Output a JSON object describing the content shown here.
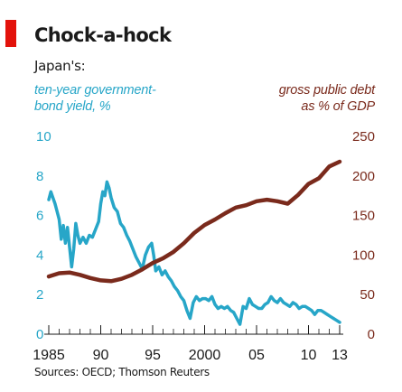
{
  "header": {
    "title": "Chock-a-hock",
    "subtitle": "Japan's:",
    "accent_color": "#e3120b"
  },
  "footer": {
    "source": "Sources: OECD; Thomson Reuters"
  },
  "chart_data": {
    "type": "line",
    "title": "Chock-a-hock",
    "subtitle": "Japan's:",
    "grid": false,
    "x_axis": {
      "range": [
        1985,
        2013
      ],
      "tick_labels": [
        "1985",
        "90",
        "95",
        "2000",
        "05",
        "10",
        "13"
      ],
      "tick_values": [
        1985,
        1990,
        1995,
        2000,
        2005,
        2010,
        2013
      ]
    },
    "left_axis": {
      "label_lines": [
        "ten-year government-",
        "bond yield, %"
      ],
      "range": [
        0,
        10
      ],
      "tick_labels": [
        "0",
        "2",
        "4",
        "6",
        "8",
        "10"
      ],
      "tick_values": [
        0,
        2,
        4,
        6,
        8,
        10
      ],
      "color": "#27a6c8"
    },
    "right_axis": {
      "label_lines": [
        "gross public debt",
        "as % of GDP"
      ],
      "range": [
        0,
        250
      ],
      "tick_labels": [
        "0",
        "50",
        "100",
        "150",
        "200",
        "250"
      ],
      "tick_values": [
        0,
        50,
        100,
        150,
        200,
        250
      ],
      "color": "#7a2a1c"
    },
    "series": [
      {
        "axis": "left",
        "color": "#27a6c8",
        "points": [
          [
            1985.0,
            6.8
          ],
          [
            1985.2,
            7.2
          ],
          [
            1985.4,
            6.9
          ],
          [
            1985.6,
            6.6
          ],
          [
            1985.8,
            6.2
          ],
          [
            1986.0,
            5.8
          ],
          [
            1986.2,
            4.8
          ],
          [
            1986.4,
            5.5
          ],
          [
            1986.6,
            4.6
          ],
          [
            1986.8,
            5.4
          ],
          [
            1987.0,
            4.4
          ],
          [
            1987.2,
            3.4
          ],
          [
            1987.4,
            4.3
          ],
          [
            1987.6,
            5.6
          ],
          [
            1987.8,
            5.0
          ],
          [
            1988.0,
            4.6
          ],
          [
            1988.3,
            4.9
          ],
          [
            1988.6,
            4.6
          ],
          [
            1988.9,
            5.0
          ],
          [
            1989.2,
            4.9
          ],
          [
            1989.5,
            5.3
          ],
          [
            1989.8,
            5.7
          ],
          [
            1990.0,
            6.6
          ],
          [
            1990.2,
            7.2
          ],
          [
            1990.4,
            7.0
          ],
          [
            1990.6,
            7.7
          ],
          [
            1990.8,
            7.4
          ],
          [
            1991.0,
            6.9
          ],
          [
            1991.3,
            6.4
          ],
          [
            1991.6,
            6.2
          ],
          [
            1991.9,
            5.6
          ],
          [
            1992.2,
            5.4
          ],
          [
            1992.5,
            5.0
          ],
          [
            1992.8,
            4.7
          ],
          [
            1993.1,
            4.3
          ],
          [
            1993.4,
            3.9
          ],
          [
            1993.7,
            3.6
          ],
          [
            1994.0,
            3.3
          ],
          [
            1994.3,
            4.0
          ],
          [
            1994.6,
            4.4
          ],
          [
            1994.9,
            4.6
          ],
          [
            1995.1,
            4.0
          ],
          [
            1995.3,
            3.2
          ],
          [
            1995.6,
            3.4
          ],
          [
            1995.9,
            3.0
          ],
          [
            1996.2,
            3.2
          ],
          [
            1996.5,
            2.9
          ],
          [
            1996.8,
            2.7
          ],
          [
            1997.1,
            2.4
          ],
          [
            1997.4,
            2.2
          ],
          [
            1997.7,
            1.9
          ],
          [
            1998.0,
            1.7
          ],
          [
            1998.3,
            1.2
          ],
          [
            1998.6,
            0.8
          ],
          [
            1998.9,
            1.6
          ],
          [
            1999.2,
            1.9
          ],
          [
            1999.5,
            1.7
          ],
          [
            1999.8,
            1.8
          ],
          [
            2000.1,
            1.8
          ],
          [
            2000.4,
            1.7
          ],
          [
            2000.7,
            1.9
          ],
          [
            2001.0,
            1.5
          ],
          [
            2001.3,
            1.3
          ],
          [
            2001.6,
            1.4
          ],
          [
            2001.9,
            1.3
          ],
          [
            2002.2,
            1.4
          ],
          [
            2002.5,
            1.2
          ],
          [
            2002.8,
            1.1
          ],
          [
            2003.1,
            0.8
          ],
          [
            2003.4,
            0.5
          ],
          [
            2003.7,
            1.4
          ],
          [
            2004.0,
            1.3
          ],
          [
            2004.3,
            1.8
          ],
          [
            2004.6,
            1.5
          ],
          [
            2004.9,
            1.4
          ],
          [
            2005.2,
            1.3
          ],
          [
            2005.5,
            1.3
          ],
          [
            2005.8,
            1.5
          ],
          [
            2006.1,
            1.6
          ],
          [
            2006.4,
            1.9
          ],
          [
            2006.7,
            1.7
          ],
          [
            2007.0,
            1.6
          ],
          [
            2007.3,
            1.8
          ],
          [
            2007.6,
            1.6
          ],
          [
            2007.9,
            1.5
          ],
          [
            2008.2,
            1.4
          ],
          [
            2008.5,
            1.6
          ],
          [
            2008.8,
            1.5
          ],
          [
            2009.1,
            1.3
          ],
          [
            2009.4,
            1.4
          ],
          [
            2009.7,
            1.4
          ],
          [
            2010.0,
            1.3
          ],
          [
            2010.3,
            1.2
          ],
          [
            2010.6,
            1.0
          ],
          [
            2010.9,
            1.2
          ],
          [
            2011.2,
            1.2
          ],
          [
            2011.5,
            1.1
          ],
          [
            2011.8,
            1.0
          ],
          [
            2012.1,
            0.9
          ],
          [
            2012.4,
            0.8
          ],
          [
            2012.7,
            0.7
          ],
          [
            2013.0,
            0.6
          ]
        ]
      },
      {
        "axis": "right",
        "color": "#7a2a1c",
        "points": [
          [
            1985,
            73
          ],
          [
            1986,
            77
          ],
          [
            1987,
            78
          ],
          [
            1988,
            75
          ],
          [
            1989,
            71
          ],
          [
            1990,
            68
          ],
          [
            1991,
            67
          ],
          [
            1992,
            70
          ],
          [
            1993,
            75
          ],
          [
            1994,
            82
          ],
          [
            1995,
            90
          ],
          [
            1996,
            96
          ],
          [
            1997,
            104
          ],
          [
            1998,
            115
          ],
          [
            1999,
            128
          ],
          [
            2000,
            138
          ],
          [
            2001,
            145
          ],
          [
            2002,
            153
          ],
          [
            2003,
            160
          ],
          [
            2004,
            163
          ],
          [
            2005,
            168
          ],
          [
            2006,
            170
          ],
          [
            2007,
            168
          ],
          [
            2008,
            165
          ],
          [
            2009,
            176
          ],
          [
            2010,
            190
          ],
          [
            2011,
            197
          ],
          [
            2012,
            212
          ],
          [
            2013,
            218
          ]
        ]
      }
    ]
  }
}
